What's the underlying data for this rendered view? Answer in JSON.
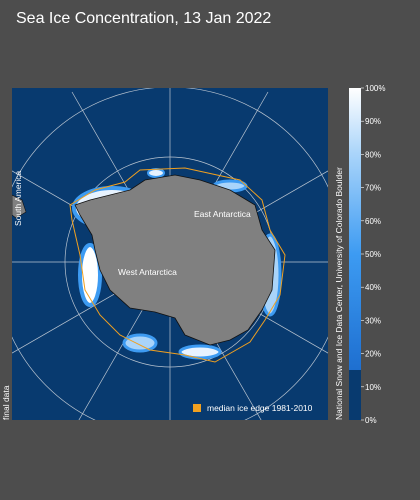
{
  "title": "Sea Ice Concentration, 13 Jan 2022",
  "map": {
    "labels": [
      "East Antarctica",
      "West Antarctica",
      "South America"
    ],
    "legend": "median ice edge 1981-2010",
    "status": "final data",
    "credit": "National Snow and Ice Data Center, University of Colorado Boulder"
  },
  "colorbar": {
    "lim": [
      0,
      100
    ],
    "ticks": [
      {
        "value": 0,
        "label": "0%"
      },
      {
        "value": 10,
        "label": "10%"
      },
      {
        "value": 20,
        "label": "20%"
      },
      {
        "value": 30,
        "label": "30%"
      },
      {
        "value": 40,
        "label": "40%"
      },
      {
        "value": 50,
        "label": "50%"
      },
      {
        "value": 60,
        "label": "60%"
      },
      {
        "value": 70,
        "label": "70%"
      },
      {
        "value": 80,
        "label": "80%"
      },
      {
        "value": 90,
        "label": "90%"
      },
      {
        "value": 100,
        "label": "100%"
      }
    ]
  }
}
